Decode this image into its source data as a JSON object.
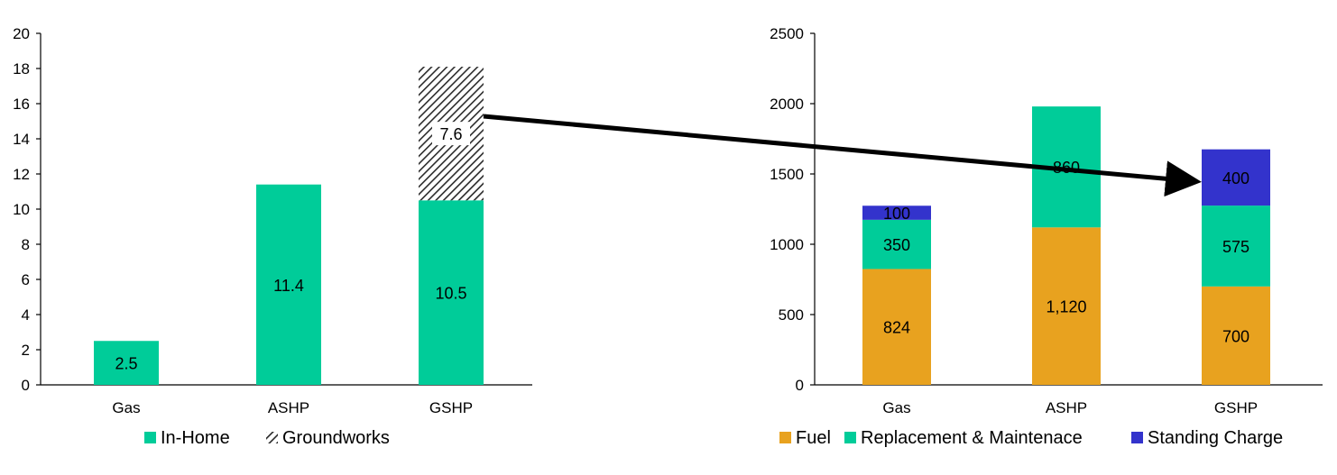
{
  "colors": {
    "in_home": "#00CC99",
    "groundworks_fg": "#2a2a2a",
    "fuel": "#E8A21F",
    "replacement": "#00CC99",
    "standing": "#3333CC",
    "axis": "#000000"
  },
  "chart_data": [
    {
      "type": "bar",
      "stacked": true,
      "categories": [
        "Gas",
        "ASHP",
        "GSHP"
      ],
      "ylim": [
        0,
        20
      ],
      "yticks": [
        0,
        2,
        4,
        6,
        8,
        10,
        12,
        14,
        16,
        18,
        20
      ],
      "series": [
        {
          "name": "In-Home",
          "values": [
            2.5,
            11.4,
            10.5
          ],
          "labels": [
            "2.5",
            "11.4",
            "10.5"
          ],
          "color": "#00CC99",
          "pattern": "solid"
        },
        {
          "name": "Groundworks",
          "values": [
            0,
            0,
            7.6
          ],
          "labels": [
            "",
            "",
            "7.6"
          ],
          "color": "#2a2a2a",
          "pattern": "hatch"
        }
      ],
      "legend": "bottom",
      "grid": false
    },
    {
      "type": "bar",
      "stacked": true,
      "categories": [
        "Gas",
        "ASHP",
        "GSHP"
      ],
      "ylim": [
        0,
        2500
      ],
      "yticks": [
        0,
        500,
        1000,
        1500,
        2000,
        2500
      ],
      "series": [
        {
          "name": "Fuel",
          "values": [
            824,
            1120,
            700
          ],
          "labels": [
            "824",
            "1,120",
            "700"
          ],
          "color": "#E8A21F"
        },
        {
          "name": "Replacement & Maintenace",
          "values": [
            350,
            860,
            575
          ],
          "labels": [
            "350",
            "860",
            "575"
          ],
          "color": "#00CC99"
        },
        {
          "name": "Standing Charge",
          "values": [
            100,
            0,
            400
          ],
          "labels": [
            "100",
            "",
            "400"
          ],
          "color": "#3333CC"
        }
      ],
      "legend": "bottom",
      "grid": false
    }
  ]
}
